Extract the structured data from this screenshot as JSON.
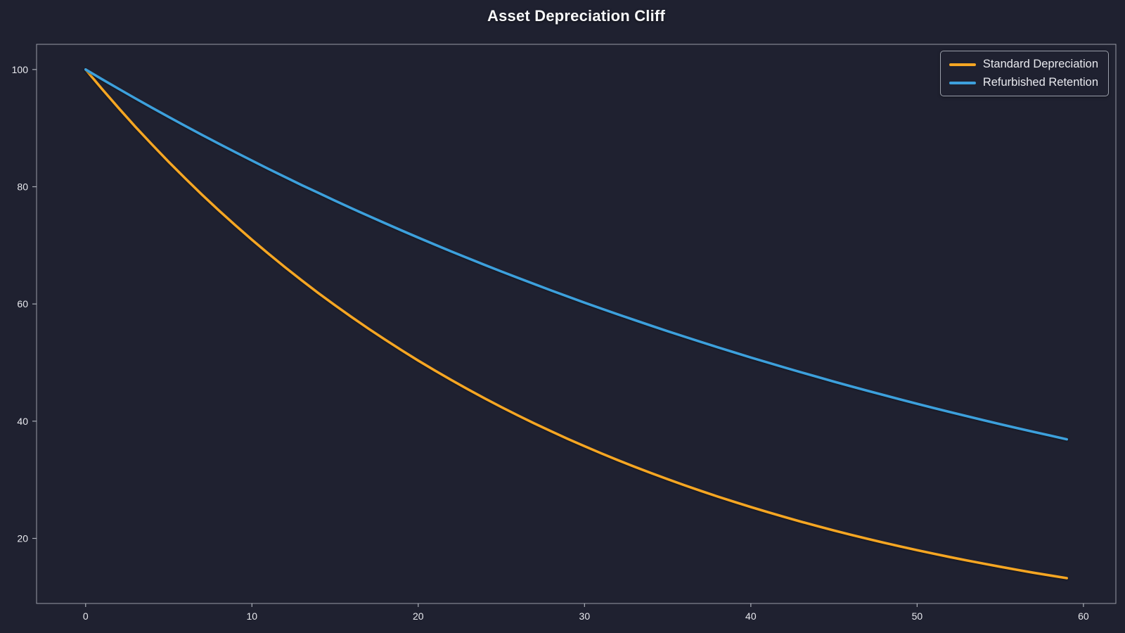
{
  "title": "Asset Depreciation Cliff",
  "colors": {
    "background": "#1f2130",
    "spine": "#c2c5ce",
    "tick_label": "#e8e9ee",
    "title_text": "#f7f8fa",
    "legend_border": "#9ba0ab",
    "series_standard": "#f5a623",
    "series_refurbished": "#3da0dc"
  },
  "legend": {
    "position": "upper-right",
    "items": [
      {
        "label": "Standard Depreciation",
        "color": "#f5a623"
      },
      {
        "label": "Refurbished Retention",
        "color": "#3da0dc"
      }
    ]
  },
  "chart_data": {
    "type": "line",
    "title": "Asset Depreciation Cliff",
    "xlabel": "",
    "ylabel": "",
    "xlim": [
      -2.95,
      61.95
    ],
    "ylim": [
      8.9,
      104.3
    ],
    "x_ticks": [
      0,
      10,
      20,
      30,
      40,
      50,
      60
    ],
    "y_ticks": [
      20,
      40,
      60,
      80,
      100
    ],
    "grid": false,
    "legend_position": "upper right",
    "x": [
      0,
      1,
      2,
      3,
      4,
      5,
      6,
      7,
      8,
      9,
      10,
      11,
      12,
      13,
      14,
      15,
      16,
      17,
      18,
      19,
      20,
      21,
      22,
      23,
      24,
      25,
      26,
      27,
      28,
      29,
      30,
      31,
      32,
      33,
      34,
      35,
      36,
      37,
      38,
      39,
      40,
      41,
      42,
      43,
      44,
      45,
      46,
      47,
      48,
      49,
      50,
      51,
      52,
      53,
      54,
      55,
      56,
      57,
      58,
      59
    ],
    "series": [
      {
        "name": "Standard Depreciation",
        "color": "#f5a623",
        "values": [
          100,
          96.63,
          93.37,
          90.21,
          87.17,
          84.23,
          81.39,
          78.64,
          75.99,
          73.43,
          70.95,
          68.56,
          66.25,
          64.01,
          61.85,
          59.77,
          57.75,
          55.8,
          53.92,
          52.1,
          50.34,
          48.65,
          47.01,
          45.42,
          43.89,
          42.41,
          40.98,
          39.6,
          38.26,
          36.97,
          35.73,
          34.52,
          33.36,
          32.23,
          31.15,
          30.1,
          29.08,
          28.1,
          27.15,
          26.24,
          25.35,
          24.5,
          23.67,
          22.87,
          22.1,
          21.36,
          20.64,
          19.94,
          19.27,
          18.62,
          17.99,
          17.39,
          16.8,
          16.23,
          15.69,
          15.16,
          14.65,
          14.15,
          13.68,
          13.22
        ]
      },
      {
        "name": "Refurbished Retention",
        "color": "#3da0dc",
        "values": [
          100,
          98.32,
          96.68,
          95.06,
          93.47,
          91.9,
          90.36,
          88.85,
          87.36,
          85.9,
          84.46,
          83.04,
          81.65,
          80.28,
          78.94,
          77.61,
          76.31,
          75.03,
          73.78,
          72.54,
          71.32,
          70.13,
          68.95,
          67.8,
          66.66,
          65.54,
          64.45,
          63.37,
          62.3,
          61.26,
          60.23,
          59.22,
          58.23,
          57.26,
          56.3,
          55.35,
          54.43,
          53.52,
          52.62,
          51.74,
          50.87,
          50.02,
          49.18,
          48.36,
          47.55,
          46.75,
          45.97,
          45.2,
          44.44,
          43.7,
          42.97,
          42.25,
          41.54,
          40.84,
          40.16,
          39.49,
          38.83,
          38.18,
          37.54,
          36.91
        ]
      }
    ]
  }
}
